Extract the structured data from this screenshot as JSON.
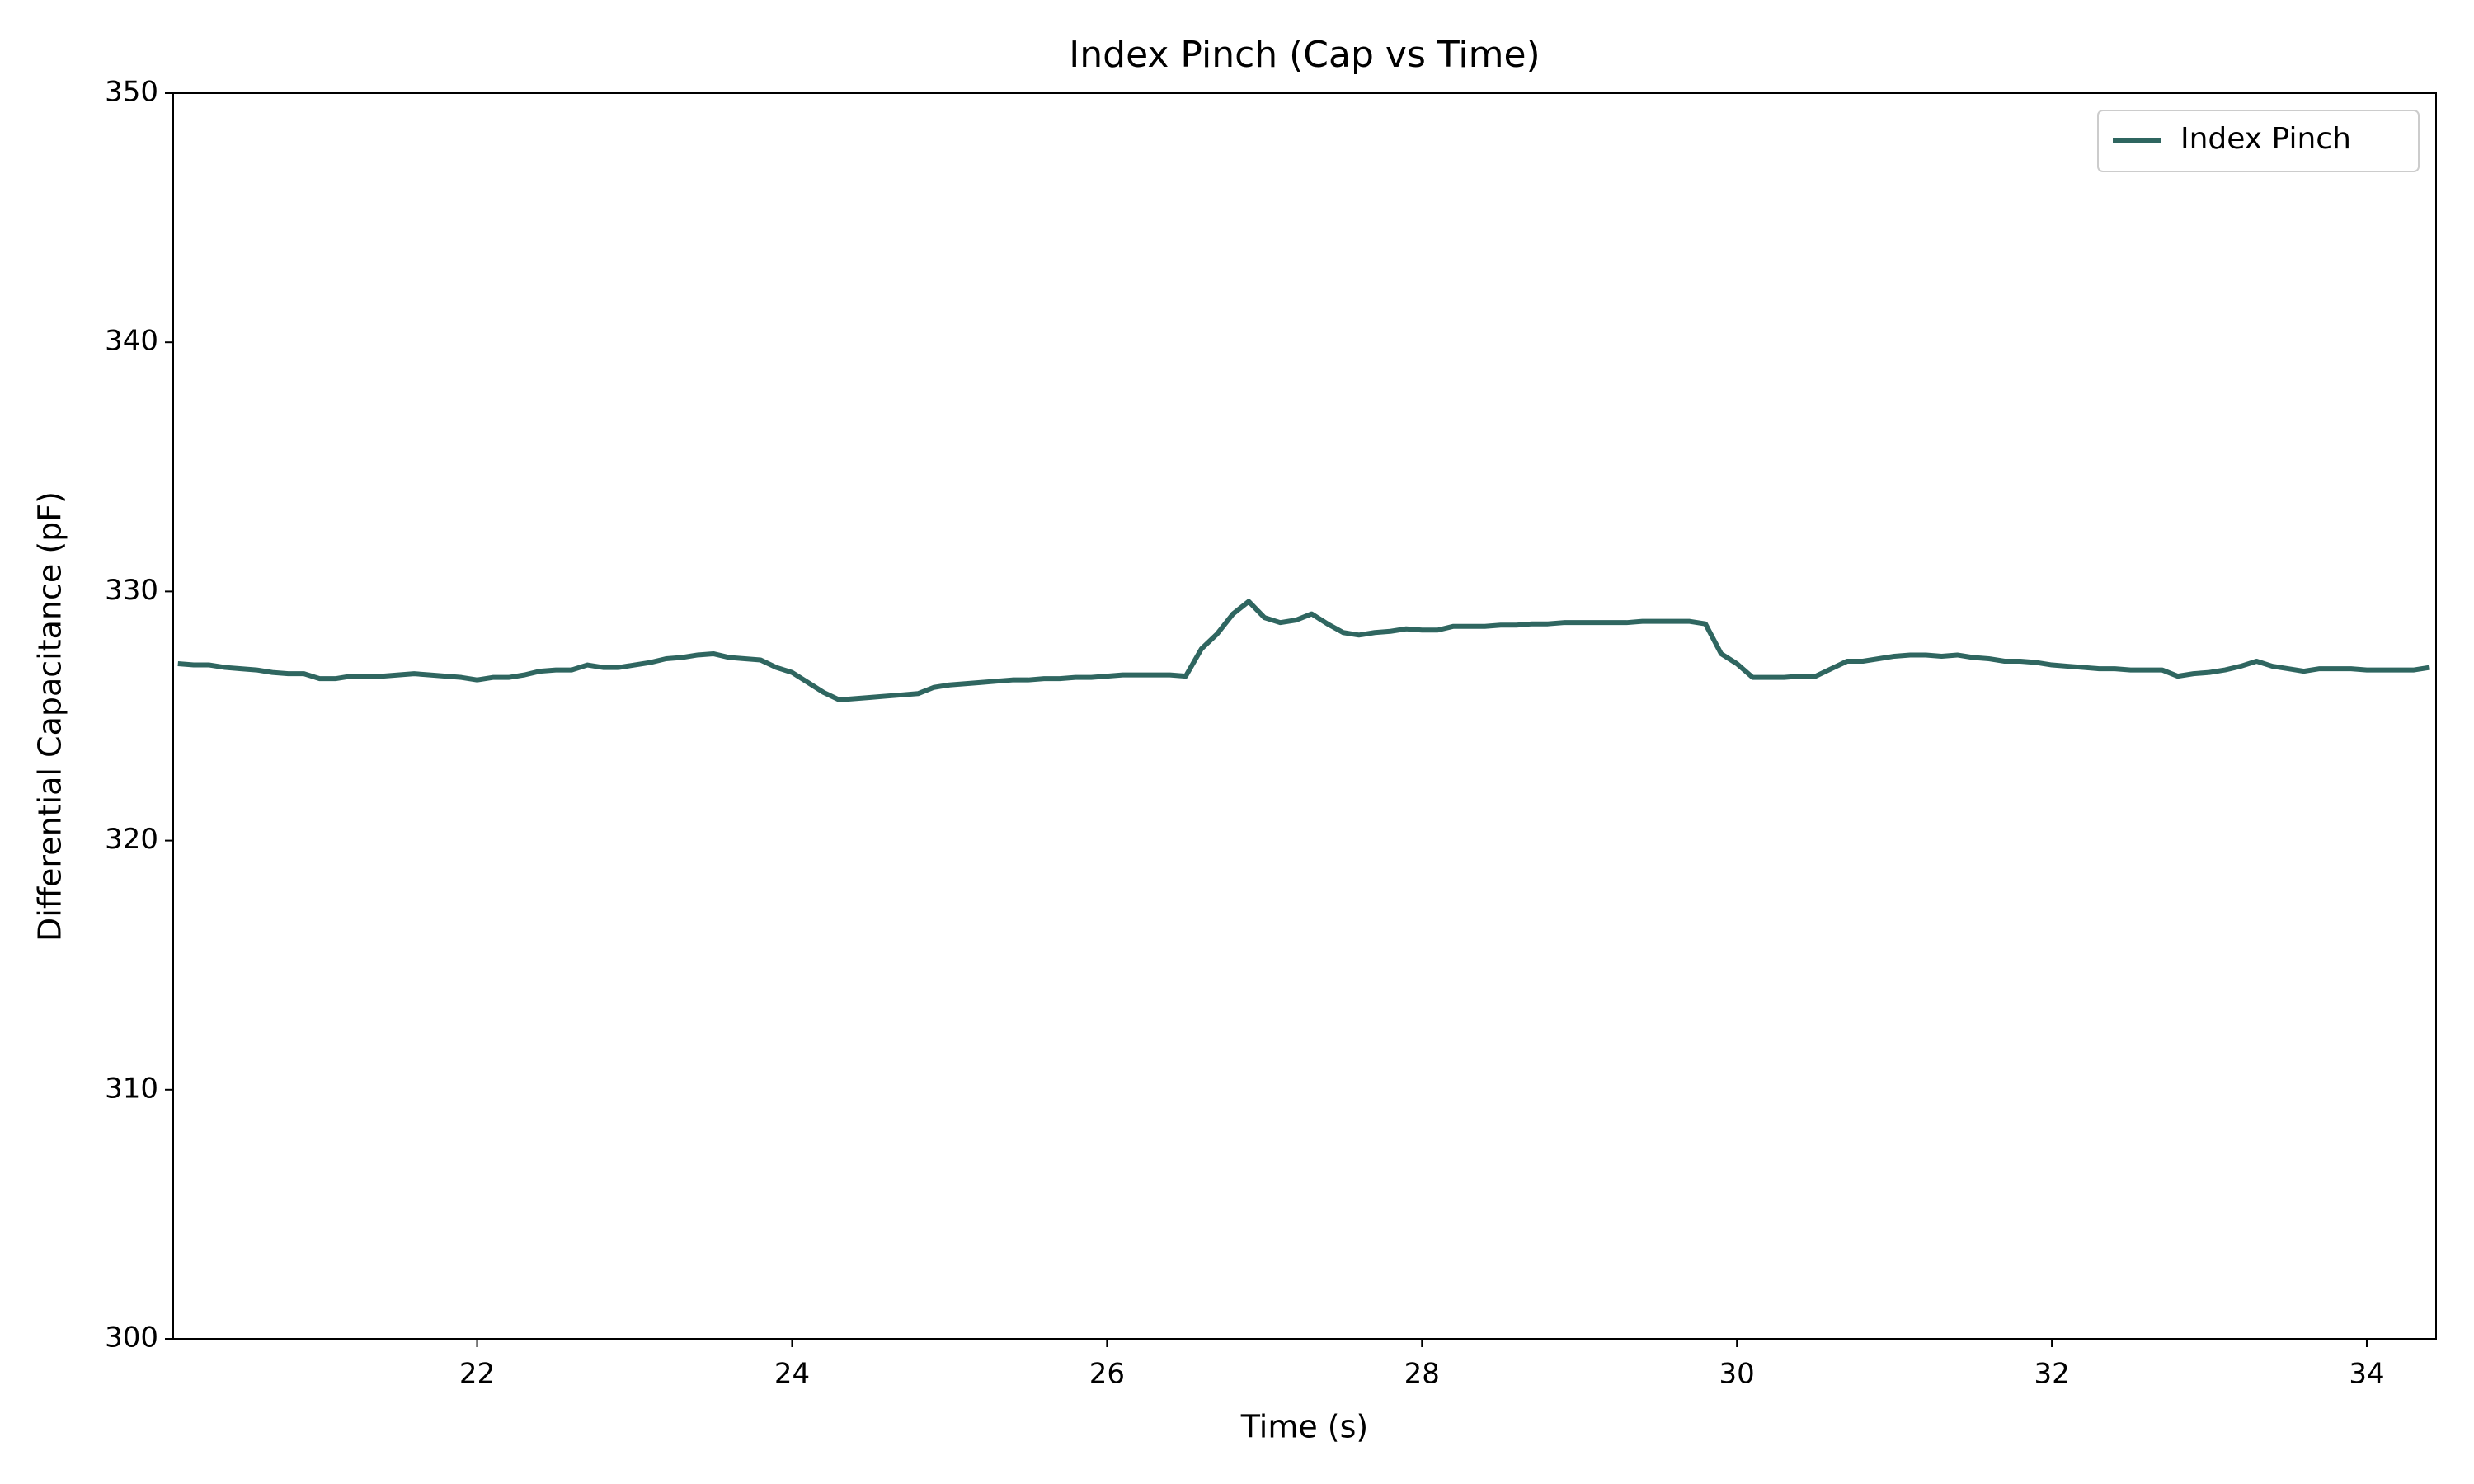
{
  "chart_data": {
    "type": "line",
    "title": "Index Pinch (Cap vs Time)",
    "x_label": "Time (s)",
    "y_label": "Differential Capacitance (pF)",
    "xlim": [
      20.07,
      34.44
    ],
    "ylim": [
      300,
      350
    ],
    "xticks": [
      22,
      24,
      26,
      28,
      30,
      32,
      34
    ],
    "yticks": [
      300,
      310,
      320,
      330,
      340,
      350
    ],
    "legend": "upper right",
    "x": [
      20.1,
      20.2,
      20.3,
      20.4,
      20.5,
      20.6,
      20.7,
      20.8,
      20.9,
      21.0,
      21.1,
      21.2,
      21.3,
      21.4,
      21.5,
      21.6,
      21.7,
      21.8,
      21.9,
      22.0,
      22.1,
      22.2,
      22.3,
      22.4,
      22.5,
      22.6,
      22.7,
      22.8,
      22.9,
      23.0,
      23.1,
      23.2,
      23.3,
      23.4,
      23.5,
      23.6,
      23.7,
      23.8,
      23.9,
      24.0,
      24.1,
      24.2,
      24.3,
      24.4,
      24.5,
      24.6,
      24.7,
      24.8,
      24.9,
      25.0,
      25.1,
      25.2,
      25.3,
      25.4,
      25.5,
      25.6,
      25.7,
      25.8,
      25.9,
      26.0,
      26.1,
      26.2,
      26.3,
      26.4,
      26.5,
      26.6,
      26.7,
      26.8,
      26.9,
      27.0,
      27.1,
      27.2,
      27.3,
      27.4,
      27.5,
      27.6,
      27.7,
      27.8,
      27.9,
      28.0,
      28.1,
      28.2,
      28.3,
      28.4,
      28.5,
      28.6,
      28.7,
      28.8,
      28.9,
      29.0,
      29.1,
      29.2,
      29.3,
      29.4,
      29.5,
      29.6,
      29.7,
      29.8,
      29.9,
      30.0,
      30.1,
      30.2,
      30.3,
      30.4,
      30.5,
      30.6,
      30.7,
      30.8,
      30.9,
      31.0,
      31.1,
      31.2,
      31.3,
      31.4,
      31.5,
      31.6,
      31.7,
      31.8,
      31.9,
      32.0,
      32.1,
      32.2,
      32.3,
      32.4,
      32.5,
      32.6,
      32.7,
      32.8,
      32.9,
      33.0,
      33.1,
      33.2,
      33.3,
      33.4,
      33.5,
      33.6,
      33.7,
      33.8,
      33.9,
      34.0,
      34.1,
      34.2,
      34.3,
      34.4
    ],
    "series": [
      {
        "name": "Index Pinch",
        "color": "#2f6660",
        "values": [
          327.1,
          327.05,
          327.05,
          326.95,
          326.9,
          326.85,
          326.75,
          326.7,
          326.7,
          326.5,
          326.5,
          326.6,
          326.6,
          326.6,
          326.65,
          326.7,
          326.65,
          326.6,
          326.55,
          326.45,
          326.55,
          326.55,
          326.65,
          326.8,
          326.85,
          326.85,
          327.05,
          326.95,
          326.95,
          327.05,
          327.15,
          327.3,
          327.35,
          327.45,
          327.5,
          327.35,
          327.3,
          327.25,
          326.95,
          326.75,
          326.35,
          325.95,
          325.65,
          325.7,
          325.75,
          325.8,
          325.85,
          325.9,
          326.15,
          326.25,
          326.3,
          326.35,
          326.4,
          326.45,
          326.45,
          326.5,
          326.5,
          326.55,
          326.55,
          326.6,
          326.65,
          326.65,
          326.65,
          326.65,
          326.6,
          327.7,
          328.3,
          329.1,
          329.6,
          328.95,
          328.75,
          328.85,
          329.1,
          328.7,
          328.35,
          328.25,
          328.35,
          328.4,
          328.5,
          328.45,
          328.45,
          328.6,
          328.6,
          328.6,
          328.65,
          328.65,
          328.7,
          328.7,
          328.75,
          328.75,
          328.75,
          328.75,
          328.75,
          328.8,
          328.8,
          328.8,
          328.8,
          328.7,
          327.5,
          327.1,
          326.55,
          326.55,
          326.55,
          326.6,
          326.6,
          326.9,
          327.2,
          327.2,
          327.3,
          327.4,
          327.45,
          327.45,
          327.4,
          327.45,
          327.35,
          327.3,
          327.2,
          327.2,
          327.15,
          327.05,
          327.0,
          326.95,
          326.9,
          326.9,
          326.85,
          326.85,
          326.85,
          326.6,
          326.7,
          326.75,
          326.85,
          327.0,
          327.2,
          327.0,
          326.9,
          326.8,
          326.9,
          326.9,
          326.9,
          326.85,
          326.85,
          326.85,
          326.85,
          326.95
        ]
      }
    ]
  }
}
